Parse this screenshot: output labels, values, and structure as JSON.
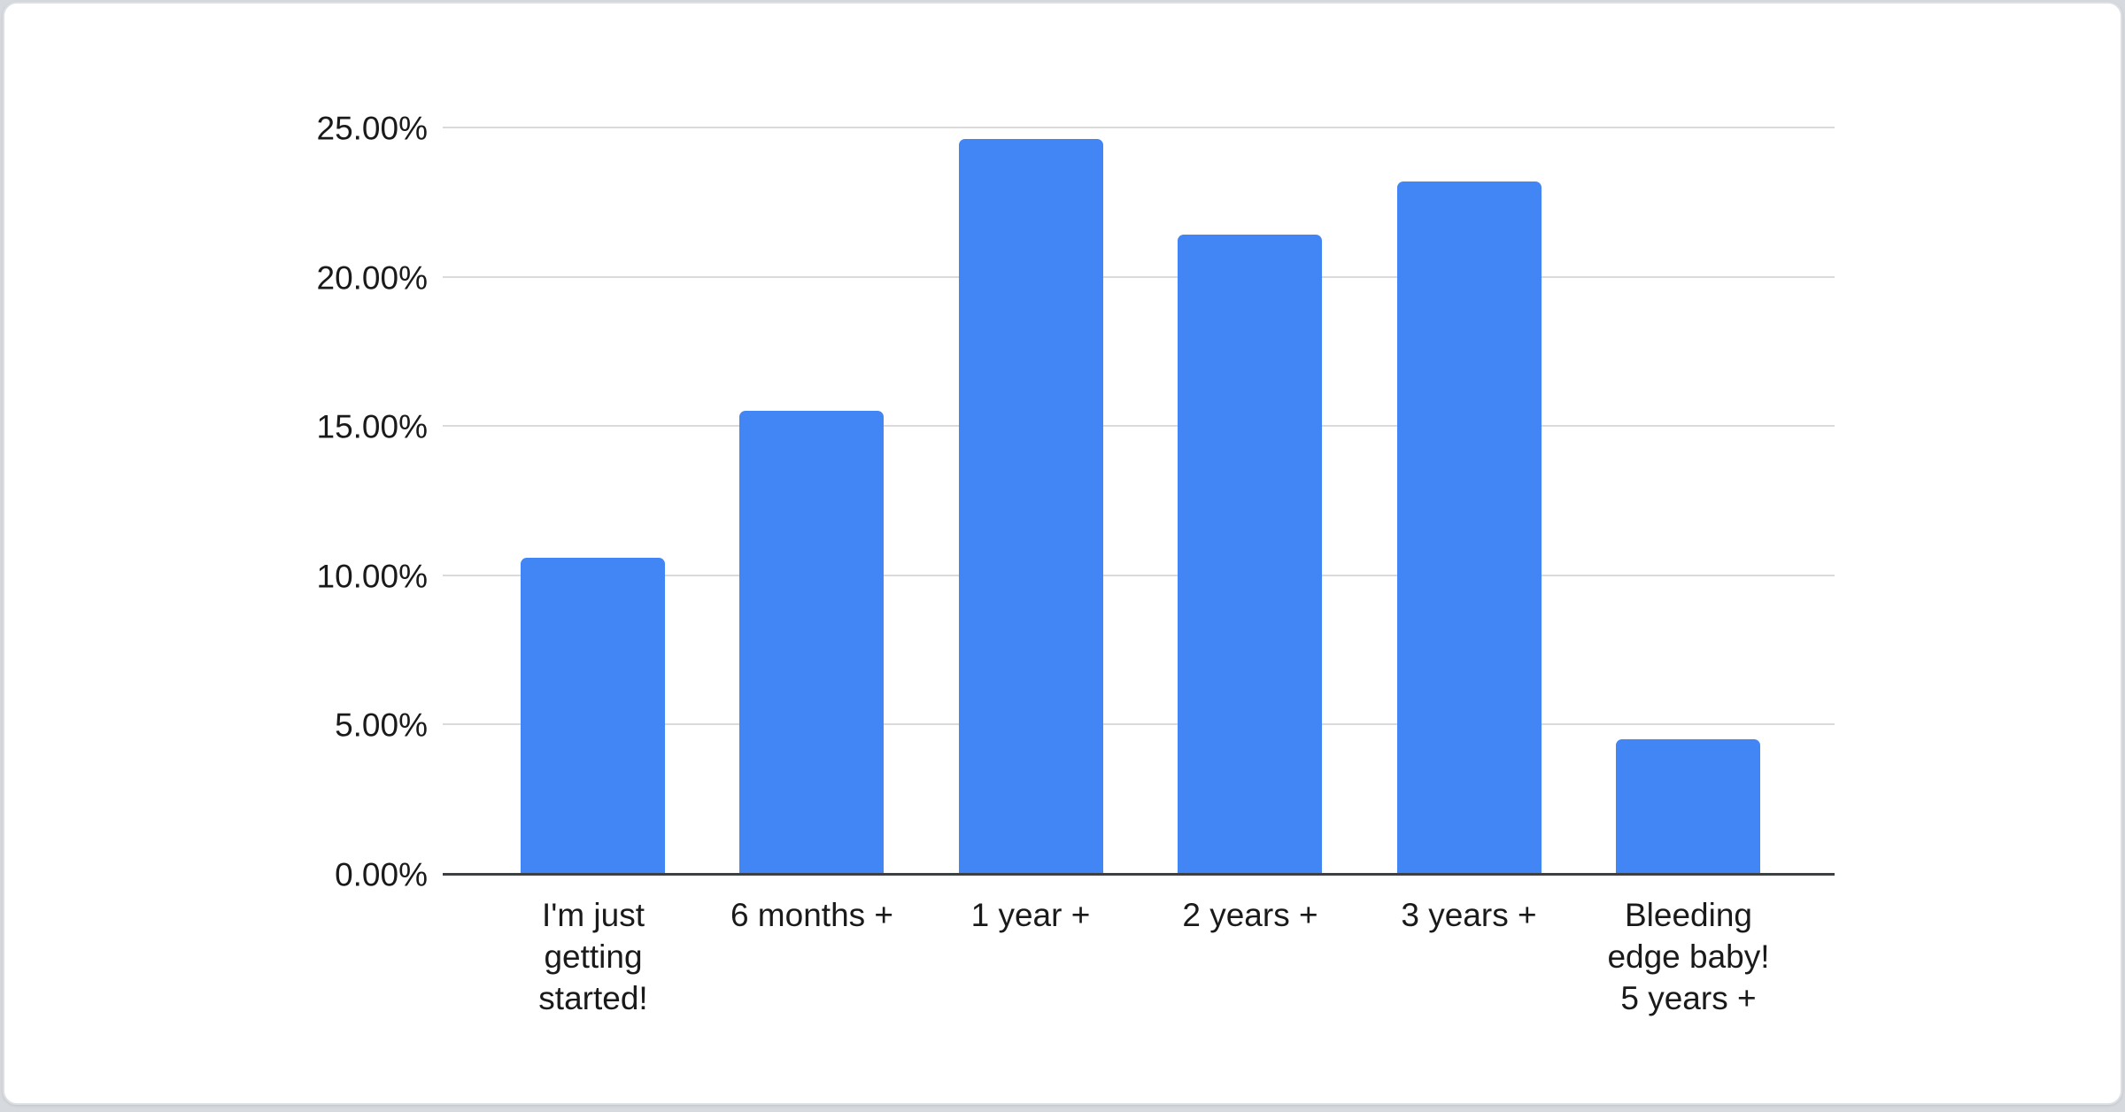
{
  "page": {
    "background_color": "#d6d9dd",
    "card_color": "#ffffff",
    "card_border_color": "#dcdfe3"
  },
  "chart_data": {
    "type": "bar",
    "title": "",
    "xlabel": "",
    "ylabel": "",
    "categories": [
      "I'm just\ngetting\nstarted!",
      "6 months +",
      "1 year +",
      "2 years +",
      "3 years +",
      "Bleeding\nedge baby!\n5 years +"
    ],
    "values": [
      10.6,
      15.5,
      24.6,
      21.4,
      23.2,
      4.5
    ],
    "value_unit": "percent",
    "ylim": [
      0,
      25
    ],
    "yticks": [
      {
        "value": 0,
        "label": "0.00%"
      },
      {
        "value": 5,
        "label": "5.00%"
      },
      {
        "value": 10,
        "label": "10.00%"
      },
      {
        "value": 15,
        "label": "15.00%"
      },
      {
        "value": 20,
        "label": "20.00%"
      },
      {
        "value": 25,
        "label": "25.00%"
      }
    ],
    "grid": true,
    "legend": "none",
    "bar_color": "#4285f4",
    "gridline_color": "#dadada",
    "axis_line_color": "#3c4043",
    "label_color": "#1a1a1a"
  }
}
